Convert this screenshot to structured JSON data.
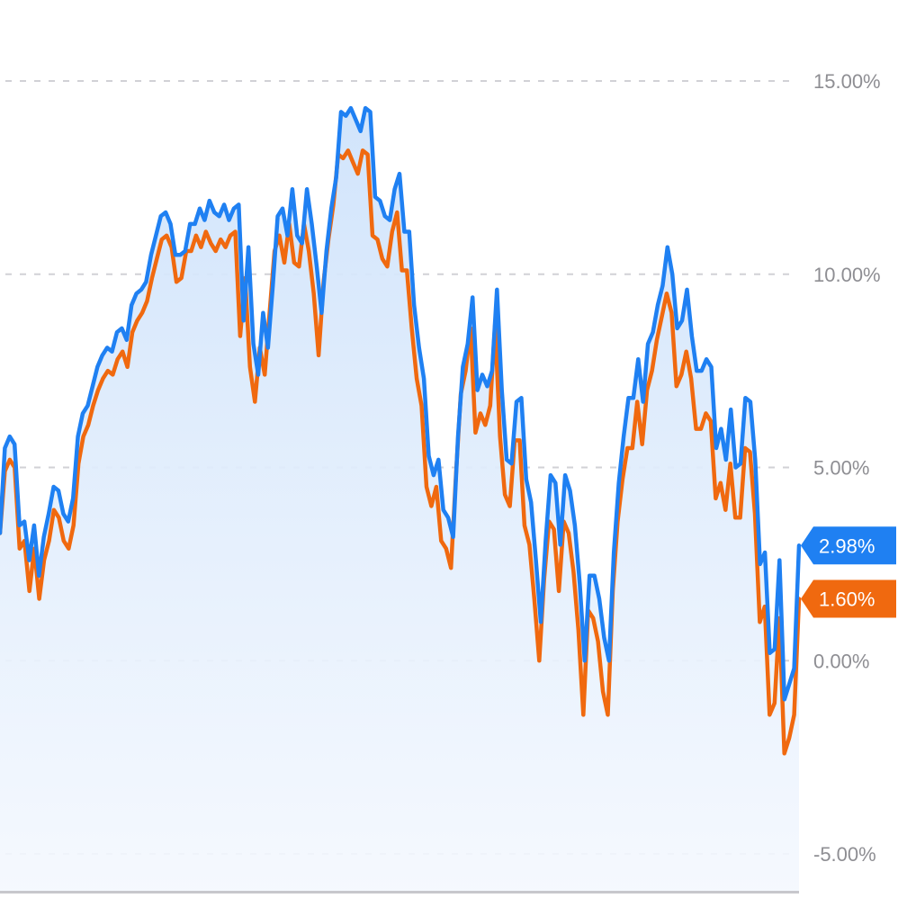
{
  "chart_data": {
    "type": "line",
    "title": "",
    "xlabel": "",
    "ylabel": "",
    "ylim": [
      -5.5,
      16.5
    ],
    "grid": true,
    "y_ticks": [
      15,
      10,
      5,
      0,
      -5
    ],
    "y_tick_labels": [
      "15.00%",
      "10.00%",
      "5.00%",
      "0.00%",
      "-5.00%"
    ],
    "series": [
      {
        "color": "#1f80f2",
        "last_label": "2.98%",
        "values": [
          3.3,
          5.5,
          5.8,
          5.6,
          3.5,
          3.6,
          2.6,
          3.5,
          2.2,
          3.2,
          3.8,
          4.5,
          4.4,
          3.8,
          3.6,
          4.2,
          5.8,
          6.4,
          6.6,
          7.1,
          7.6,
          7.9,
          8.1,
          8.0,
          8.5,
          8.6,
          8.3,
          9.2,
          9.5,
          9.6,
          9.8,
          10.5,
          11.0,
          11.5,
          11.6,
          11.3,
          10.5,
          10.5,
          10.6,
          11.3,
          11.3,
          11.7,
          11.4,
          11.9,
          11.6,
          11.5,
          11.8,
          11.4,
          11.7,
          11.8,
          8.8,
          10.7,
          8.2,
          7.4,
          9.0,
          8.1,
          9.7,
          11.5,
          11.7,
          11.0,
          12.2,
          11.0,
          10.8,
          12.2,
          11.3,
          10.2,
          9.0,
          10.6,
          11.7,
          12.5,
          14.2,
          14.1,
          14.3,
          14.0,
          13.7,
          14.3,
          14.2,
          12.0,
          11.9,
          11.5,
          11.4,
          12.2,
          12.6,
          11.1,
          11.1,
          9.2,
          8.1,
          7.3,
          5.3,
          4.8,
          5.2,
          3.9,
          3.7,
          3.2,
          5.8,
          7.6,
          8.2,
          9.4,
          7.0,
          7.4,
          7.1,
          7.5,
          9.6,
          7.0,
          5.2,
          5.1,
          6.7,
          6.8,
          4.7,
          4.1,
          2.6,
          1.0,
          3.1,
          4.8,
          4.6,
          3.0,
          4.8,
          4.4,
          3.5,
          2.0,
          0.0,
          2.2,
          2.2,
          1.6,
          0.6,
          0.0,
          2.8,
          4.6,
          5.8,
          6.8,
          6.8,
          7.8,
          6.7,
          8.2,
          8.5,
          9.2,
          9.7,
          10.7,
          10.0,
          8.6,
          8.8,
          9.6,
          8.4,
          7.5,
          7.5,
          7.8,
          7.6,
          5.5,
          6.0,
          5.2,
          6.5,
          5.0,
          5.1,
          6.8,
          6.7,
          5.2,
          2.5,
          2.8,
          0.2,
          0.3,
          2.6,
          -1.0,
          -0.6,
          -0.2,
          2.98
        ]
      },
      {
        "color": "#f0690f",
        "last_label": "1.60%",
        "values": [
          3.3,
          4.9,
          5.2,
          5.0,
          2.9,
          3.1,
          1.8,
          2.9,
          1.6,
          2.6,
          3.1,
          3.9,
          3.7,
          3.1,
          2.9,
          3.5,
          5.1,
          5.8,
          6.1,
          6.6,
          7.0,
          7.3,
          7.5,
          7.4,
          7.8,
          8.0,
          7.6,
          8.5,
          8.8,
          9.0,
          9.3,
          9.9,
          10.4,
          10.9,
          11.0,
          10.7,
          9.8,
          9.9,
          10.6,
          10.6,
          11.0,
          10.7,
          11.1,
          10.8,
          10.6,
          10.9,
          10.7,
          11.0,
          11.1,
          8.4,
          9.9,
          7.6,
          6.7,
          8.1,
          7.4,
          9.0,
          10.6,
          11.0,
          10.3,
          11.3,
          10.3,
          10.2,
          11.3,
          10.6,
          9.5,
          7.9,
          9.8,
          10.9,
          11.8,
          13.1,
          13.0,
          13.2,
          12.9,
          12.6,
          13.2,
          13.1,
          11.0,
          10.9,
          10.4,
          10.2,
          11.1,
          11.6,
          10.1,
          10.1,
          8.6,
          7.3,
          6.6,
          4.5,
          4.0,
          4.5,
          3.1,
          2.9,
          2.4,
          4.8,
          6.9,
          7.5,
          8.6,
          5.9,
          6.4,
          6.1,
          6.6,
          8.7,
          5.8,
          4.3,
          4.0,
          5.7,
          5.7,
          3.5,
          3.0,
          1.6,
          0.0,
          2.1,
          3.6,
          3.4,
          1.8,
          3.6,
          3.3,
          2.3,
          0.8,
          -1.4,
          1.3,
          1.1,
          0.5,
          -0.8,
          -1.4,
          1.8,
          3.6,
          4.7,
          5.5,
          5.5,
          6.7,
          5.6,
          7.0,
          7.5,
          8.3,
          8.9,
          9.5,
          9.0,
          7.1,
          7.4,
          8.0,
          7.3,
          6.0,
          6.0,
          6.4,
          6.2,
          4.2,
          4.6,
          3.9,
          5.1,
          3.7,
          3.7,
          5.5,
          5.4,
          3.8,
          1.0,
          1.4,
          -1.4,
          -1.1,
          1.1,
          -2.4,
          -2.0,
          -1.4,
          1.6
        ]
      }
    ]
  }
}
